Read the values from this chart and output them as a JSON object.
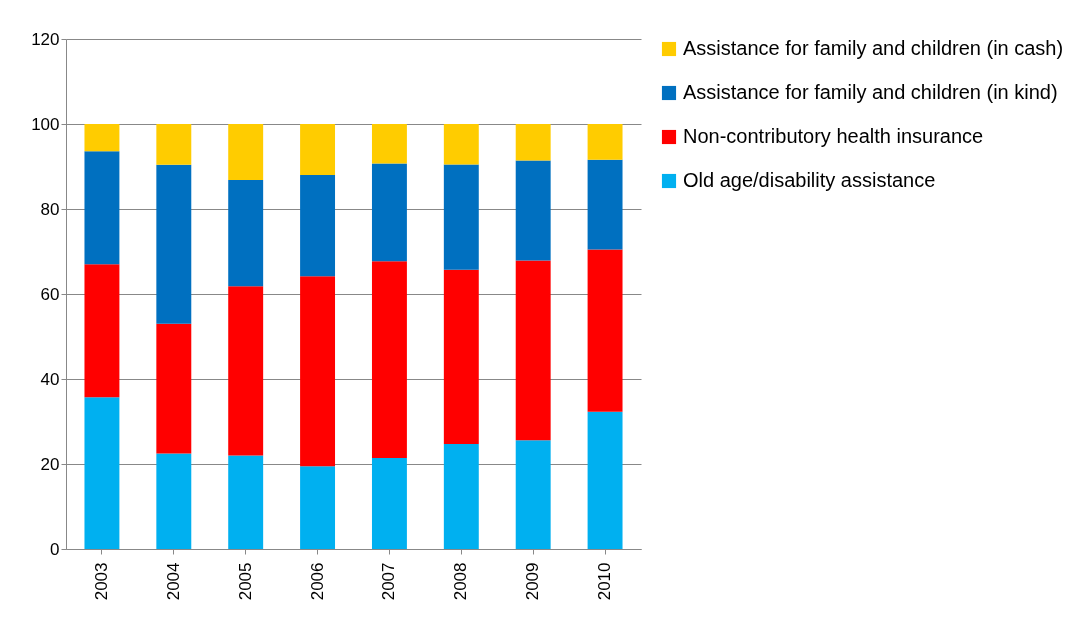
{
  "chart_data": {
    "type": "bar",
    "stacked": true,
    "categories": [
      "2003",
      "2004",
      "2005",
      "2006",
      "2007",
      "2008",
      "2009",
      "2010"
    ],
    "series": [
      {
        "name": "Old age/disability assistance",
        "color": "#00b0f0",
        "values": [
          35.7,
          22.5,
          22.0,
          19.5,
          21.4,
          24.7,
          25.6,
          32.3
        ]
      },
      {
        "name": "Non-contributory health insurance",
        "color": "#ff0000",
        "values": [
          31.3,
          30.5,
          39.8,
          44.7,
          46.3,
          41.0,
          42.3,
          38.2
        ]
      },
      {
        "name": "Assistance for family and children (in kind)",
        "color": "#0070c0",
        "values": [
          26.6,
          37.4,
          25.0,
          23.8,
          23.0,
          24.8,
          23.5,
          21.1
        ]
      },
      {
        "name": "Assistance for family and children (in cash)",
        "color": "#ffcc00",
        "values": [
          6.4,
          9.6,
          13.2,
          12.0,
          9.3,
          9.5,
          8.6,
          8.4
        ]
      }
    ],
    "ylim": [
      0,
      120
    ],
    "yticks": [
      0,
      20,
      40,
      60,
      80,
      100,
      120
    ],
    "grid": "y",
    "legend": "right"
  }
}
